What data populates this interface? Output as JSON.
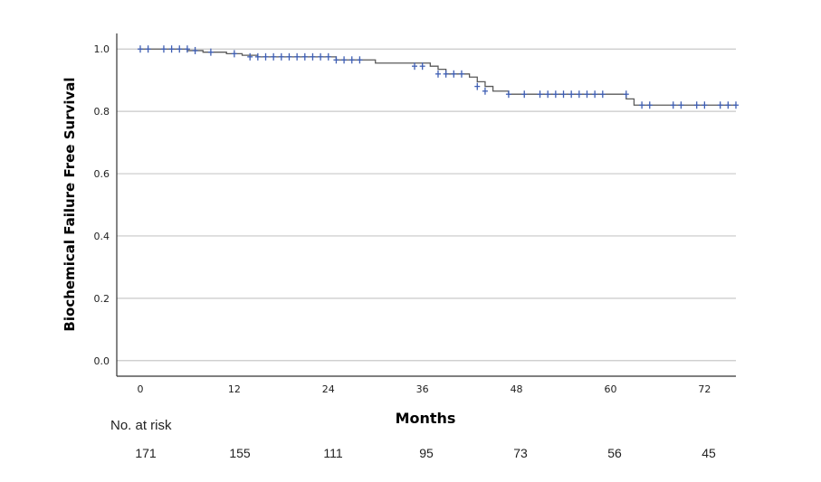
{
  "chart_data": {
    "type": "line",
    "subtype": "kaplan-meier",
    "xlabel": "Months",
    "ylabel": "Biochemical Failure Free Survival",
    "xlim": [
      -3,
      76
    ],
    "ylim": [
      -0.05,
      1.05
    ],
    "x_ticks": [
      "0",
      "12",
      "24",
      "36",
      "48",
      "60",
      "72"
    ],
    "y_ticks": [
      "0.0",
      "0.2",
      "0.4",
      "0.6",
      "0.8",
      "1.0"
    ],
    "grid": "horizontal",
    "colors": {
      "curve": "#5a5a5a",
      "censor": "#3f5fb4",
      "grid": "#c8c8c8",
      "axis": "#333333"
    },
    "series": [
      {
        "steps": [
          [
            0,
            1.0
          ],
          [
            6,
            0.995
          ],
          [
            8,
            0.99
          ],
          [
            11,
            0.985
          ],
          [
            13,
            0.98
          ],
          [
            15,
            0.975
          ],
          [
            25,
            0.965
          ],
          [
            30,
            0.955
          ],
          [
            37,
            0.945
          ],
          [
            38,
            0.935
          ],
          [
            39,
            0.92
          ],
          [
            42,
            0.91
          ],
          [
            43,
            0.895
          ],
          [
            44,
            0.88
          ],
          [
            45,
            0.865
          ],
          [
            47,
            0.855
          ],
          [
            62,
            0.84
          ],
          [
            63,
            0.82
          ],
          [
            76,
            0.82
          ]
        ],
        "censored": [
          [
            0,
            1.0
          ],
          [
            1,
            1.0
          ],
          [
            3,
            1.0
          ],
          [
            4,
            1.0
          ],
          [
            5,
            1.0
          ],
          [
            6,
            1.0
          ],
          [
            7,
            0.995
          ],
          [
            9,
            0.99
          ],
          [
            12,
            0.985
          ],
          [
            14,
            0.975
          ],
          [
            15,
            0.975
          ],
          [
            16,
            0.975
          ],
          [
            17,
            0.975
          ],
          [
            18,
            0.975
          ],
          [
            19,
            0.975
          ],
          [
            20,
            0.975
          ],
          [
            21,
            0.975
          ],
          [
            22,
            0.975
          ],
          [
            23,
            0.975
          ],
          [
            24,
            0.975
          ],
          [
            25,
            0.965
          ],
          [
            26,
            0.965
          ],
          [
            27,
            0.965
          ],
          [
            28,
            0.965
          ],
          [
            35,
            0.945
          ],
          [
            36,
            0.945
          ],
          [
            38,
            0.92
          ],
          [
            39,
            0.92
          ],
          [
            40,
            0.92
          ],
          [
            41,
            0.92
          ],
          [
            43,
            0.88
          ],
          [
            44,
            0.865
          ],
          [
            47,
            0.855
          ],
          [
            49,
            0.855
          ],
          [
            51,
            0.855
          ],
          [
            52,
            0.855
          ],
          [
            53,
            0.855
          ],
          [
            54,
            0.855
          ],
          [
            55,
            0.855
          ],
          [
            56,
            0.855
          ],
          [
            57,
            0.855
          ],
          [
            58,
            0.855
          ],
          [
            59,
            0.855
          ],
          [
            62,
            0.855
          ],
          [
            64,
            0.82
          ],
          [
            65,
            0.82
          ],
          [
            68,
            0.82
          ],
          [
            69,
            0.82
          ],
          [
            71,
            0.82
          ],
          [
            72,
            0.82
          ],
          [
            74,
            0.82
          ],
          [
            75,
            0.82
          ],
          [
            76,
            0.82
          ]
        ]
      }
    ],
    "risk_table": {
      "title": "No. at risk",
      "times": [
        0,
        12,
        24,
        36,
        48,
        60,
        72
      ],
      "values": [
        "171",
        "155",
        "111",
        "95",
        "73",
        "56",
        "45"
      ]
    }
  }
}
